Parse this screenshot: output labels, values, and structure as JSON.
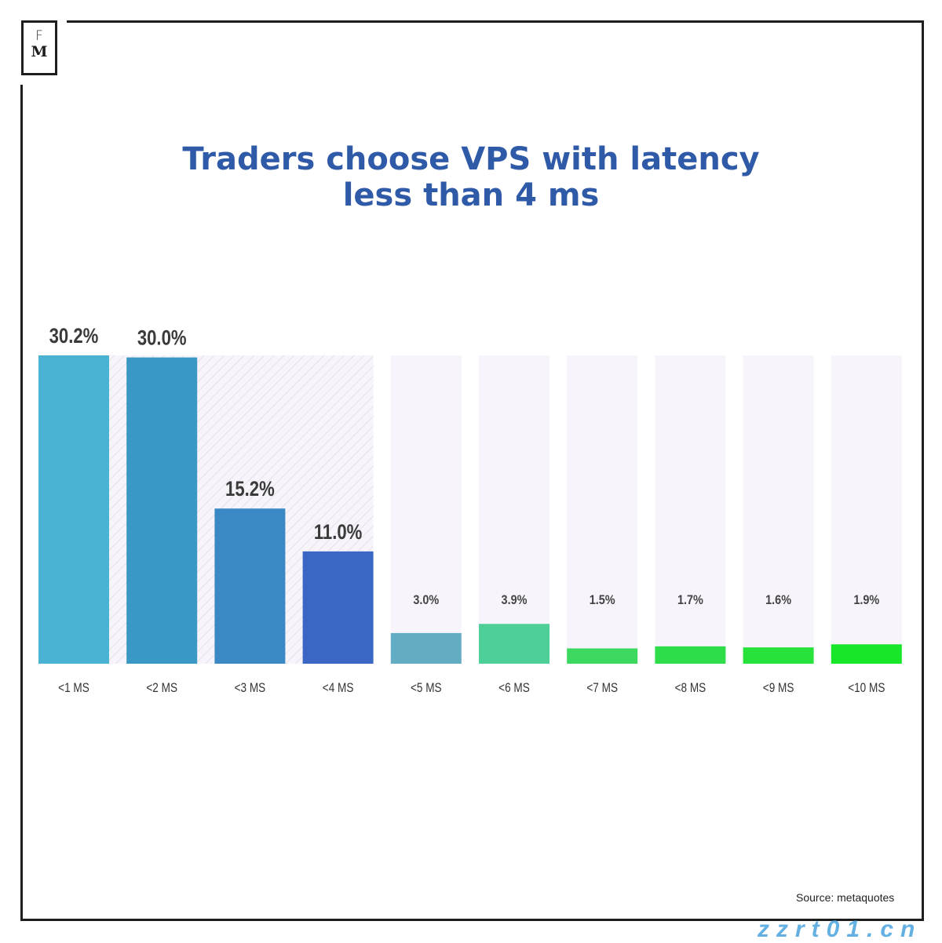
{
  "brand": {
    "logo_letters": [
      "F",
      "M"
    ]
  },
  "title_lines": [
    "Traders choose VPS with latency",
    "less than 4 ms"
  ],
  "source": "Source: metaquotes",
  "watermark": "zzrt01.cn",
  "chart_data": {
    "type": "bar",
    "title": "Traders choose VPS with latency less than 4 ms",
    "categories": [
      "<1 MS",
      "<2 MS",
      "<3 MS",
      "<4 MS",
      "<5 MS",
      "<6 MS",
      "<7 MS",
      "<8 MS",
      "<9 MS",
      "<10 MS"
    ],
    "values": [
      30.2,
      30.0,
      15.2,
      11.0,
      3.0,
      3.9,
      1.5,
      1.7,
      1.6,
      1.9
    ],
    "data_labels": [
      "30.2%",
      "30.0%",
      "15.2%",
      "11.0%",
      "3.0%",
      "3.9%",
      "1.5%",
      "1.7%",
      "1.6%",
      "1.9%"
    ],
    "colors": [
      "#4ab3d4",
      "#3a98c4",
      "#3a88c4",
      "#3a66c4",
      "#62acc4",
      "#4fcf98",
      "#3cd860",
      "#2fdc4a",
      "#28e23c",
      "#18e628"
    ],
    "highlighted_categories": [
      "<1 MS",
      "<2 MS",
      "<3 MS",
      "<4 MS"
    ],
    "ylim": [
      0,
      30.2
    ],
    "grid": false,
    "xlabel": "",
    "ylabel": ""
  }
}
